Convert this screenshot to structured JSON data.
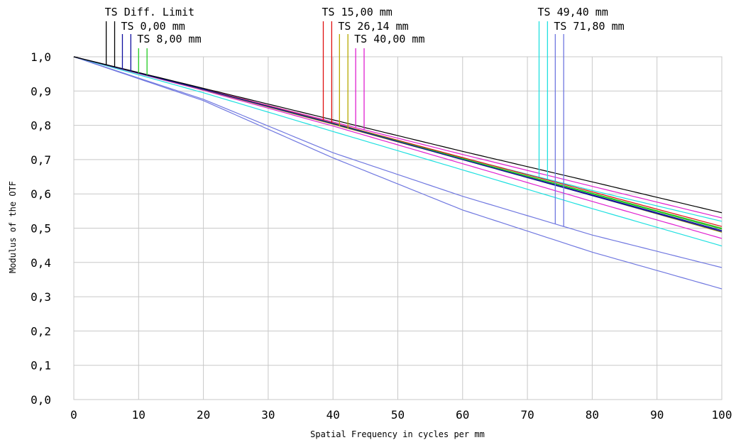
{
  "chart_data": {
    "type": "line",
    "title": "",
    "xlabel": "Spatial Frequency in cycles per mm",
    "ylabel": "Modulus of the OTF",
    "xlim": [
      0,
      100
    ],
    "ylim": [
      0,
      1
    ],
    "grid": true,
    "x_ticks": [
      "0",
      "10",
      "20",
      "30",
      "40",
      "50",
      "60",
      "70",
      "80",
      "90",
      "100"
    ],
    "y_ticks": [
      "0,0",
      "0,1",
      "0,2",
      "0,3",
      "0,4",
      "0,5",
      "0,6",
      "0,7",
      "0,8",
      "0,9",
      "1,0"
    ],
    "legend_labels": [
      "TS Diff. Limit",
      "TS 0,00 mm",
      "TS 8,00 mm",
      "TS 15,00 mm",
      "TS 26,14 mm",
      "TS 40,00 mm",
      "TS 49,40 mm",
      "TS 71,80 mm"
    ],
    "series": [
      {
        "name": "TS Diff. Limit",
        "color": "#000000",
        "markers": [
          5,
          6.3
        ],
        "x": [
          0,
          20,
          40,
          60,
          80,
          100
        ],
        "y": [
          1.0,
          0.908,
          0.816,
          0.724,
          0.635,
          0.545
        ]
      },
      {
        "name": "TS 0,00 mm",
        "color": "#1010a0",
        "markers": [
          7.5,
          8.8
        ],
        "x": [
          0,
          20,
          40,
          60,
          80,
          100
        ],
        "y": [
          1.0,
          0.905,
          0.805,
          0.7,
          0.595,
          0.49
        ]
      },
      {
        "name": "TS 0,00 mm",
        "color": "#1010a0",
        "markers": [],
        "x": [
          0,
          20,
          40,
          60,
          80,
          100
        ],
        "y": [
          1.0,
          0.905,
          0.805,
          0.7,
          0.597,
          0.493
        ]
      },
      {
        "name": "TS 8,00 mm",
        "color": "#22cc22",
        "markers": [
          10,
          11.3
        ],
        "x": [
          0,
          20,
          40,
          60,
          80,
          100
        ],
        "y": [
          1.0,
          0.905,
          0.805,
          0.702,
          0.6,
          0.497
        ]
      },
      {
        "name": "TS 8,00 mm",
        "color": "#22cc22",
        "markers": [],
        "x": [
          0,
          20,
          40,
          60,
          80,
          100
        ],
        "y": [
          1.0,
          0.905,
          0.806,
          0.703,
          0.602,
          0.5
        ]
      },
      {
        "name": "TS 15,00 mm",
        "color": "#e01010",
        "markers": [
          38.5,
          39.8
        ],
        "x": [
          0,
          20,
          40,
          60,
          80,
          100
        ],
        "y": [
          1.0,
          0.906,
          0.807,
          0.706,
          0.606,
          0.505
        ]
      },
      {
        "name": "TS 15,00 mm",
        "color": "#e01010",
        "markers": [],
        "x": [
          0,
          20,
          40,
          60,
          80,
          100
        ],
        "y": [
          1.0,
          0.905,
          0.805,
          0.703,
          0.6,
          0.498
        ]
      },
      {
        "name": "TS 26,14 mm",
        "color": "#b8a800",
        "markers": [
          41,
          42.3
        ],
        "x": [
          0,
          20,
          40,
          60,
          80,
          100
        ],
        "y": [
          1.0,
          0.904,
          0.803,
          0.7,
          0.595,
          0.488
        ]
      },
      {
        "name": "TS 26,14 mm",
        "color": "#b8a800",
        "markers": [],
        "x": [
          0,
          20,
          40,
          60,
          80,
          100
        ],
        "y": [
          1.0,
          0.905,
          0.804,
          0.7,
          0.596,
          0.49
        ]
      },
      {
        "name": "TS 40,00 mm",
        "color": "#e020d0",
        "markers": [
          43.5,
          44.8
        ],
        "x": [
          0,
          20,
          40,
          60,
          80,
          100
        ],
        "y": [
          1.0,
          0.906,
          0.81,
          0.715,
          0.622,
          0.53
        ]
      },
      {
        "name": "TS 40,00 mm",
        "color": "#e020d0",
        "markers": [],
        "x": [
          0,
          20,
          40,
          60,
          80,
          100
        ],
        "y": [
          1.0,
          0.902,
          0.798,
          0.688,
          0.578,
          0.47
        ]
      },
      {
        "name": "TS 49,40 mm",
        "color": "#20e0e0",
        "markers": [
          71.8,
          73.1
        ],
        "x": [
          0,
          20,
          40,
          60,
          80,
          100
        ],
        "y": [
          1.0,
          0.905,
          0.806,
          0.705,
          0.61,
          0.52
        ]
      },
      {
        "name": "TS 49,40 mm",
        "color": "#20e0e0",
        "markers": [],
        "x": [
          0,
          20,
          40,
          60,
          80,
          100
        ],
        "y": [
          1.0,
          0.895,
          0.782,
          0.67,
          0.557,
          0.448
        ]
      },
      {
        "name": "TS 71,80 mm",
        "color": "#7078e0",
        "markers": [
          74.3,
          75.6
        ],
        "x": [
          0,
          20,
          40,
          60,
          80,
          100
        ],
        "y": [
          1.0,
          0.876,
          0.72,
          0.593,
          0.48,
          0.385
        ]
      },
      {
        "name": "TS 71,80 mm",
        "color": "#7078e0",
        "markers": [],
        "x": [
          0,
          20,
          40,
          60,
          80,
          100
        ],
        "y": [
          1.0,
          0.872,
          0.705,
          0.553,
          0.43,
          0.323
        ]
      }
    ]
  }
}
